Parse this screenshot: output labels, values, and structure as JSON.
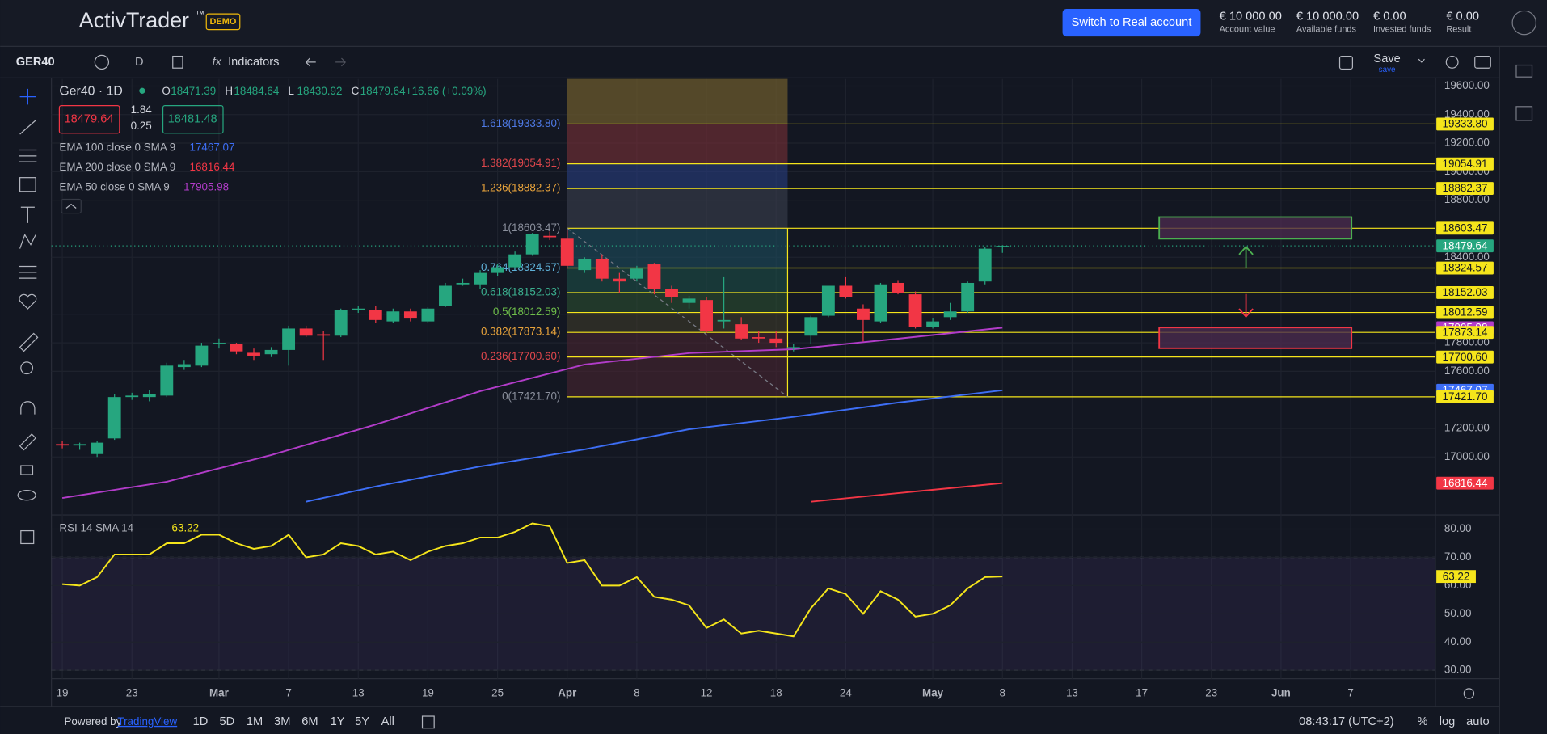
{
  "header": {
    "logo": "ActivTrader",
    "tm": "™",
    "demo": "DEMO",
    "button": "Switch to Real account",
    "stats": [
      {
        "value": "€ 10 000.00",
        "label": "Account value"
      },
      {
        "value": "€ 10 000.00",
        "label": "Available funds"
      },
      {
        "value": "€ 0.00",
        "label": "Invested funds"
      },
      {
        "value": "€ 0.00",
        "label": "Result"
      }
    ]
  },
  "toolbar": {
    "symbol": "GER40",
    "interval": "D",
    "indicators": "Indicators",
    "save": "Save",
    "save_sub": "save"
  },
  "legend": {
    "title": "Ger40 · 1D",
    "ohlc": [
      {
        "k": "O",
        "v": "18471.39"
      },
      {
        "k": "H",
        "v": "18484.64"
      },
      {
        "k": "L",
        "v": "18430.92"
      },
      {
        "k": "C",
        "v": "18479.64"
      }
    ],
    "change": "+16.66 (+0.09%)",
    "sell": "18479.64",
    "spread_top": "1.84",
    "spread_bottom": "0.25",
    "buy": "18481.48",
    "emas": [
      {
        "name": "EMA 100 close 0 SMA 9",
        "value": "17467.07",
        "color": "#3d6ef5"
      },
      {
        "name": "EMA 200 close 0 SMA 9",
        "value": "16816.44",
        "color": "#f23645"
      },
      {
        "name": "EMA 50 close 0 SMA 9",
        "value": "17905.98",
        "color": "#b23cc9"
      }
    ],
    "rsi_name": "RSI 14 SMA 14",
    "rsi_value": "63.22"
  },
  "chart_data": {
    "type": "candlestick",
    "ylim": [
      16600,
      19650
    ],
    "yticks": [
      {
        "value": 19600,
        "label": "19600.00"
      },
      {
        "value": 19400,
        "label": "19400.00"
      },
      {
        "value": 19200,
        "label": "19200.00"
      },
      {
        "value": 19000,
        "label": "19000.00"
      },
      {
        "value": 18800,
        "label": "18800.00"
      },
      {
        "value": 18400,
        "label": "18400.00"
      },
      {
        "value": 18000,
        "label": "18000.00"
      },
      {
        "value": 17800,
        "label": "17800.00"
      },
      {
        "value": 17600,
        "label": "17600.00"
      },
      {
        "value": 17200,
        "label": "17200.00"
      },
      {
        "value": 17000,
        "label": "17000.00"
      }
    ],
    "x_labels": [
      "19",
      "23",
      "Mar",
      "7",
      "13",
      "19",
      "25",
      "Apr",
      "8",
      "12",
      "18",
      "24",
      "May",
      "8",
      "13",
      "17",
      "23",
      "Jun",
      "7"
    ],
    "x_label_index": [
      0,
      4,
      9,
      13,
      17,
      21,
      25,
      29,
      33,
      37,
      41,
      45,
      50,
      54,
      58,
      62,
      66,
      70,
      74
    ],
    "up_color": "#26a67f",
    "down_color": "#f23645",
    "candles": [
      [
        17090,
        17110,
        17060,
        17080
      ],
      [
        17080,
        17100,
        17050,
        17090
      ],
      [
        17020,
        17110,
        17000,
        17100
      ],
      [
        17130,
        17440,
        17120,
        17420
      ],
      [
        17420,
        17450,
        17400,
        17430
      ],
      [
        17420,
        17470,
        17390,
        17440
      ],
      [
        17430,
        17660,
        17420,
        17640
      ],
      [
        17630,
        17680,
        17610,
        17650
      ],
      [
        17640,
        17800,
        17630,
        17780
      ],
      [
        17790,
        17830,
        17760,
        17800
      ],
      [
        17790,
        17800,
        17720,
        17740
      ],
      [
        17730,
        17760,
        17680,
        17710
      ],
      [
        17720,
        17770,
        17700,
        17750
      ],
      [
        17750,
        17920,
        17640,
        17900
      ],
      [
        17900,
        17920,
        17840,
        17850
      ],
      [
        17860,
        17880,
        17680,
        17850
      ],
      [
        17850,
        18040,
        17840,
        18030
      ],
      [
        18030,
        18060,
        18010,
        18040
      ],
      [
        18030,
        18060,
        17940,
        17960
      ],
      [
        17950,
        18040,
        17940,
        18020
      ],
      [
        18020,
        18040,
        17950,
        17970
      ],
      [
        17950,
        18050,
        17940,
        18040
      ],
      [
        18060,
        18220,
        18050,
        18200
      ],
      [
        18210,
        18250,
        18200,
        18220
      ],
      [
        18210,
        18310,
        18180,
        18290
      ],
      [
        18290,
        18350,
        18270,
        18330
      ],
      [
        18330,
        18440,
        18320,
        18420
      ],
      [
        18420,
        18570,
        18410,
        18560
      ],
      [
        18550,
        18580,
        18520,
        18540
      ],
      [
        18530,
        18590,
        18320,
        18340
      ],
      [
        18310,
        18400,
        18290,
        18390
      ],
      [
        18390,
        18420,
        18230,
        18250
      ],
      [
        18250,
        18290,
        18150,
        18230
      ],
      [
        18250,
        18340,
        18230,
        18320
      ],
      [
        18350,
        18360,
        18140,
        18180
      ],
      [
        18180,
        18200,
        18080,
        18120
      ],
      [
        18080,
        18130,
        18040,
        18110
      ],
      [
        18100,
        18120,
        17870,
        17880
      ],
      [
        17950,
        18260,
        17900,
        17960
      ],
      [
        17930,
        17980,
        17820,
        17830
      ],
      [
        17840,
        17880,
        17800,
        17830
      ],
      [
        17830,
        17880,
        17770,
        17800
      ],
      [
        17760,
        17790,
        17740,
        17770
      ],
      [
        17850,
        17990,
        17790,
        17980
      ],
      [
        17990,
        18200,
        17980,
        18200
      ],
      [
        18200,
        18260,
        18110,
        18120
      ],
      [
        18040,
        18070,
        17810,
        17960
      ],
      [
        17950,
        18220,
        17940,
        18210
      ],
      [
        18220,
        18240,
        18140,
        18150
      ],
      [
        18140,
        18160,
        17900,
        17910
      ],
      [
        17910,
        17970,
        17900,
        17950
      ],
      [
        17980,
        18080,
        17960,
        18020
      ],
      [
        18020,
        18230,
        18010,
        18220
      ],
      [
        18230,
        18470,
        18210,
        18460
      ],
      [
        18471.39,
        18484.64,
        18430.92,
        18479.64
      ]
    ],
    "lines": [
      {
        "color": "#b23cc9",
        "x": [
          0,
          6,
          12,
          18,
          24,
          30,
          36,
          42,
          48,
          54
        ],
        "values": [
          16712,
          16826,
          17013,
          17227,
          17461,
          17648,
          17728,
          17755,
          17829,
          17905.98
        ]
      },
      {
        "color": "#3d6ef5",
        "x": [
          14,
          18,
          24,
          30,
          36,
          42,
          48,
          54
        ],
        "values": [
          16686,
          16793,
          16933,
          17053,
          17194,
          17281,
          17381,
          17467.07
        ]
      },
      {
        "color": "#f23645",
        "x": [
          43,
          48,
          54
        ],
        "values": [
          16686,
          16746,
          16816.44
        ]
      }
    ],
    "fib": [
      {
        "label": "1.618(19333.80)",
        "value": 19333.8,
        "color": "#4f7be8",
        "fill": "#6b6a3c"
      },
      {
        "label": "1.382(19054.91)",
        "value": 19054.91,
        "color": "#e0474c",
        "fill": "#7a3037"
      },
      {
        "label": "1.236(18882.37)",
        "value": 18882.37,
        "color": "#e8a33b",
        "fill": "#283e80"
      },
      {
        "label": "1(18603.47)",
        "value": 18603.47,
        "color": "#8a8f9c",
        "fill": "#3a3f4e"
      },
      {
        "label": "0.764(18324.57)",
        "value": 18324.57,
        "color": "#5fb1d8",
        "fill": "#1d4c5e"
      },
      {
        "label": "0.618(18152.03)",
        "value": 18152.03,
        "color": "#3bb08f",
        "fill": "#1d4e48"
      },
      {
        "label": "0.5(18012.59)",
        "value": 18012.59,
        "color": "#6fbf4a",
        "fill": "#2c4e30"
      },
      {
        "label": "0.382(17873.14)",
        "value": 17873.14,
        "color": "#e8a33b",
        "fill": "#3e3a2a"
      },
      {
        "label": "0.236(17700.60)",
        "value": 17700.6,
        "color": "#e0474c",
        "fill": "#4a2530"
      },
      {
        "label": "0(17421.70)",
        "value": 17421.7,
        "color": "#8a8f9c",
        "fill": "#4a2530"
      }
    ],
    "fib_top_fill": "#6b5a2c",
    "tags": [
      {
        "value": 19333.8,
        "label": "19333.80",
        "color": "#f5e51b"
      },
      {
        "value": 19054.91,
        "label": "19054.91",
        "color": "#f5e51b"
      },
      {
        "value": 18882.37,
        "label": "18882.37",
        "color": "#f5e51b"
      },
      {
        "value": 18603.47,
        "label": "18603.47",
        "color": "#f5e51b"
      },
      {
        "value": 18479.64,
        "label": "18479.64",
        "color": "#26a67f"
      },
      {
        "value": 18324.57,
        "label": "18324.57",
        "color": "#f5e51b"
      },
      {
        "value": 18152.03,
        "label": "18152.03",
        "color": "#f5e51b"
      },
      {
        "value": 18012.59,
        "label": "18012.59",
        "color": "#f5e51b"
      },
      {
        "value": 17905.98,
        "label": "17905.98",
        "color": "#b23cc9"
      },
      {
        "value": 17873.14,
        "label": "17873.14",
        "color": "#f5e51b"
      },
      {
        "value": 17700.6,
        "label": "17700.60",
        "color": "#f5e51b"
      },
      {
        "value": 17467.07,
        "label": "17467.07",
        "color": "#3d6ef5"
      },
      {
        "value": 17421.7,
        "label": "17421.70",
        "color": "#f5e51b"
      },
      {
        "value": 16816.44,
        "label": "16816.44",
        "color": "#f23645"
      }
    ],
    "rsi": {
      "color": "#f5e51b",
      "ylim": [
        27,
        85
      ],
      "band": [
        30,
        70
      ],
      "yticks": [
        {
          "value": 80,
          "label": "80.00"
        },
        {
          "value": 70,
          "label": "70.00"
        },
        {
          "value": 60,
          "label": "60.00"
        },
        {
          "value": 50,
          "label": "50.00"
        },
        {
          "value": 40,
          "label": "40.00"
        },
        {
          "value": 30,
          "label": "30.00"
        }
      ],
      "tag": {
        "value": 63.22,
        "label": "63.22"
      },
      "values": [
        60.5,
        60,
        63,
        71,
        71,
        71,
        75,
        75,
        78,
        78,
        75,
        73,
        74,
        78,
        70,
        71,
        75,
        74,
        71,
        72,
        69,
        72,
        74,
        75,
        77,
        77,
        79,
        82,
        81,
        68,
        69,
        60,
        60,
        63,
        56,
        55,
        53,
        45,
        48,
        43,
        44,
        43,
        42,
        52,
        59,
        57,
        50,
        58,
        55,
        49,
        50,
        53,
        59,
        63,
        63.22
      ]
    }
  },
  "footer": {
    "powered": "Powered by",
    "brand": "TradingView",
    "ranges": [
      "1D",
      "5D",
      "1M",
      "3M",
      "6M",
      "1Y",
      "5Y",
      "All"
    ],
    "time": "08:43:17 (UTC+2)",
    "pct": "%",
    "log": "log",
    "auto": "auto"
  }
}
